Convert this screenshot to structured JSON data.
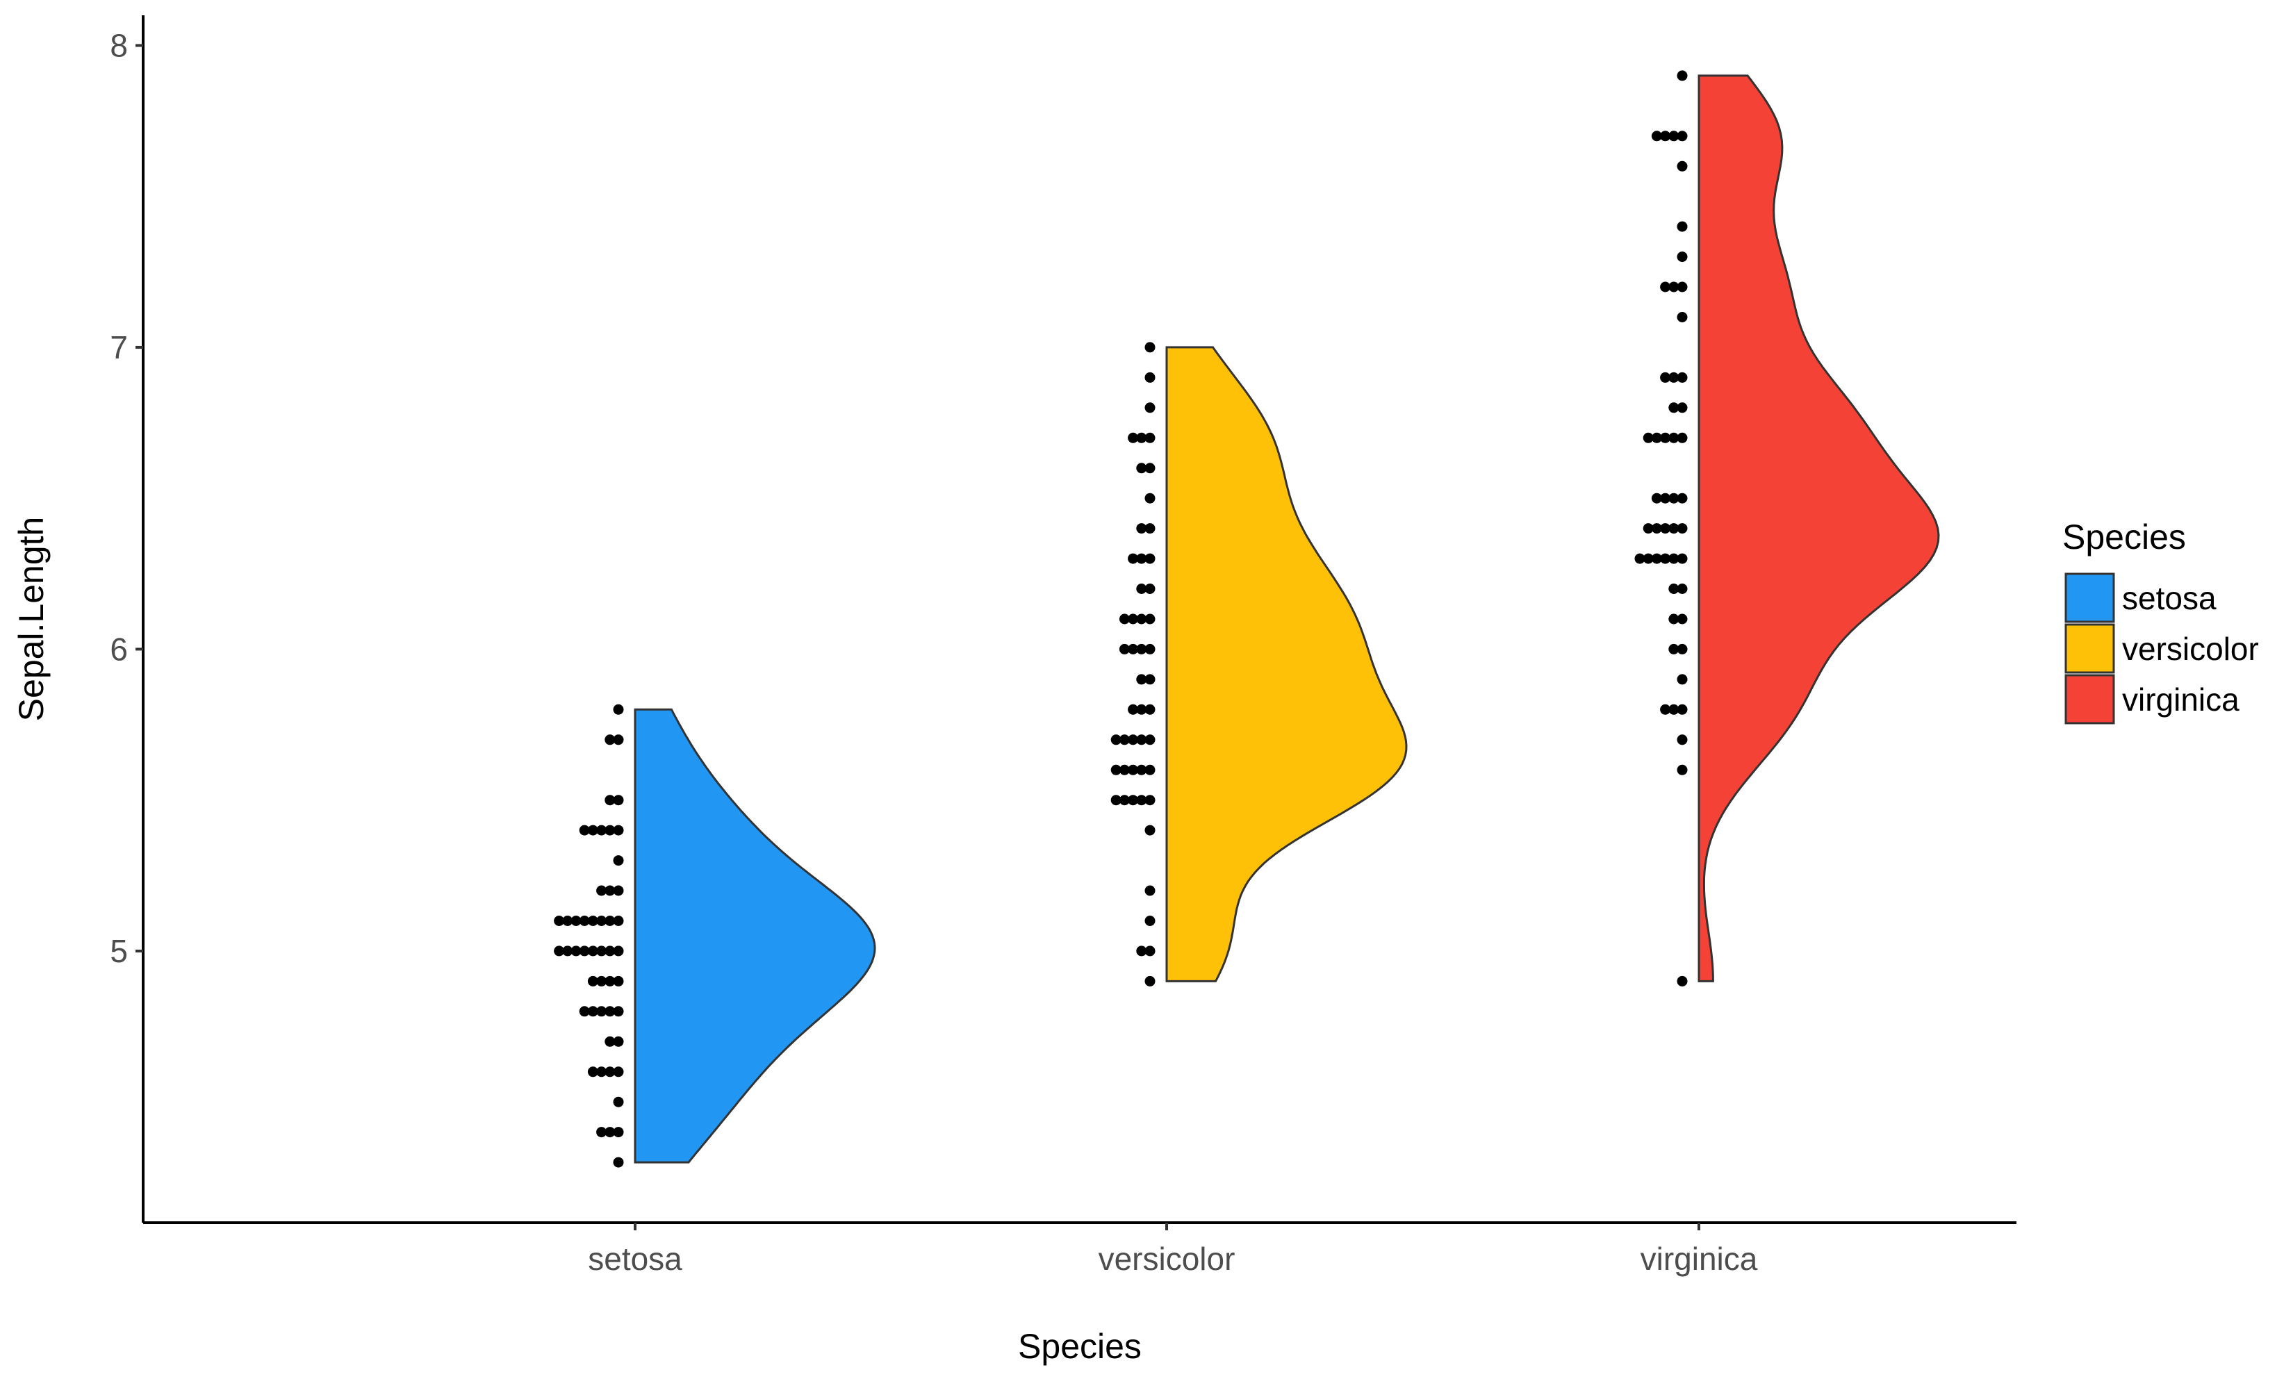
{
  "chart_data": {
    "type": "violin",
    "subtype": "half-violin with dot plot",
    "xlabel": "Species",
    "ylabel": "Sepal.Length",
    "categories": [
      "setosa",
      "versicolor",
      "virginica"
    ],
    "ylim": [
      4.1,
      8.1
    ],
    "y_ticks": [
      "5",
      "6",
      "7",
      "8"
    ],
    "grid": false,
    "legend": {
      "title": "Species",
      "position": "right",
      "entries": [
        "setosa",
        "versicolor",
        "virginica"
      ]
    },
    "colors": {
      "setosa": "#2196F3",
      "versicolor": "#FFC107",
      "virginica": "#F44336",
      "outline": "#333333",
      "dots": "#000000"
    },
    "series": [
      {
        "name": "setosa",
        "values": [
          4.3,
          4.4,
          4.4,
          4.4,
          4.5,
          4.6,
          4.6,
          4.6,
          4.6,
          4.7,
          4.7,
          4.8,
          4.8,
          4.8,
          4.8,
          4.8,
          4.9,
          4.9,
          4.9,
          4.9,
          5.0,
          5.0,
          5.0,
          5.0,
          5.0,
          5.0,
          5.0,
          5.0,
          5.1,
          5.1,
          5.1,
          5.1,
          5.1,
          5.1,
          5.1,
          5.1,
          5.2,
          5.2,
          5.2,
          5.3,
          5.4,
          5.4,
          5.4,
          5.4,
          5.4,
          5.5,
          5.5,
          5.7,
          5.7,
          5.8
        ]
      },
      {
        "name": "versicolor",
        "values": [
          4.9,
          5.0,
          5.0,
          5.1,
          5.2,
          5.4,
          5.5,
          5.5,
          5.5,
          5.5,
          5.5,
          5.6,
          5.6,
          5.6,
          5.6,
          5.6,
          5.7,
          5.7,
          5.7,
          5.7,
          5.7,
          5.8,
          5.8,
          5.8,
          5.9,
          5.9,
          6.0,
          6.0,
          6.0,
          6.0,
          6.1,
          6.1,
          6.1,
          6.1,
          6.2,
          6.2,
          6.3,
          6.3,
          6.3,
          6.4,
          6.4,
          6.5,
          6.6,
          6.6,
          6.7,
          6.7,
          6.7,
          6.8,
          6.9,
          7.0
        ]
      },
      {
        "name": "virginica",
        "values": [
          4.9,
          5.6,
          5.7,
          5.8,
          5.8,
          5.8,
          5.9,
          6.0,
          6.0,
          6.1,
          6.1,
          6.2,
          6.2,
          6.3,
          6.3,
          6.3,
          6.3,
          6.3,
          6.3,
          6.4,
          6.4,
          6.4,
          6.4,
          6.4,
          6.5,
          6.5,
          6.5,
          6.5,
          6.7,
          6.7,
          6.7,
          6.7,
          6.7,
          6.8,
          6.8,
          6.9,
          6.9,
          6.9,
          7.1,
          7.2,
          7.2,
          7.2,
          7.3,
          7.4,
          7.6,
          7.7,
          7.7,
          7.7,
          7.7,
          7.9
        ]
      }
    ]
  }
}
